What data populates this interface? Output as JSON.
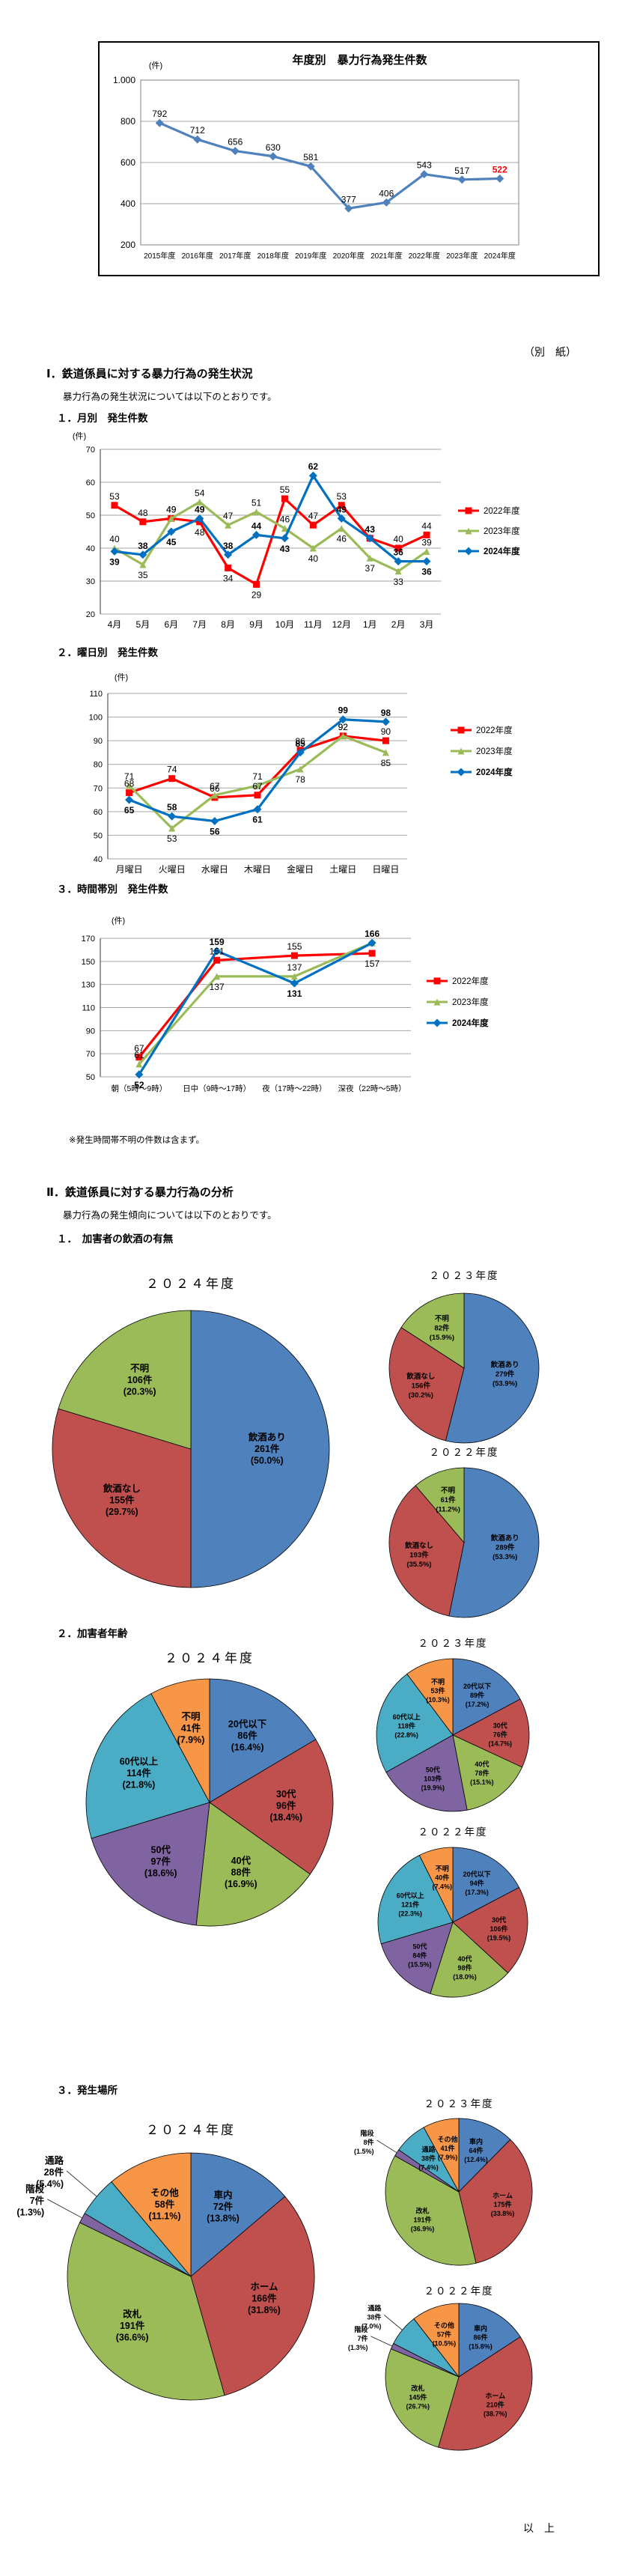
{
  "page": {
    "besshi": "（別　紙）",
    "section1_title": "Ⅰ．鉄道係員に対する暴力行為の発生状況",
    "section1_sub": "暴力行為の発生状況については以下のとおりです。",
    "monthly_title": "１．月別　発生件数",
    "weekday_title": "２．曜日別　発生件数",
    "time_title": "３．時間帯別　発生件数",
    "time_note": "※発生時間帯不明の件数は含まず。",
    "section2_title": "Ⅱ．鉄道係員に対する暴力行為の分析",
    "section2_sub": "暴力行為の発生傾向については以下のとおりです。",
    "analysis1_title": "１．　加害者の飲酒の有無",
    "analysis2_title": "２．加害者年齢",
    "analysis3_title": "３．発生場所",
    "closing": "以　上"
  },
  "colors": {
    "series_2022": "#FF0000",
    "series_2023": "#9BBB59",
    "series_2024": "#0070C0",
    "annual_line": "#4F81BD",
    "pie_blue": "#4F81BD",
    "pie_red": "#C0504D",
    "pie_green": "#9BBB59",
    "pie_purple": "#8064A2",
    "pie_teal": "#4BACC6",
    "pie_orange": "#F79646"
  },
  "chart_data": [
    {
      "id": "annual",
      "type": "line",
      "title": "年度別　暴力行為発生件数",
      "unit": "(件)",
      "categories": [
        "2015年度",
        "2016年度",
        "2017年度",
        "2018年度",
        "2019年度",
        "2020年度",
        "2021年度",
        "2022年度",
        "2023年度",
        "2024年度"
      ],
      "values": [
        792,
        712,
        656,
        630,
        581,
        377,
        406,
        543,
        517,
        522
      ],
      "ylim": [
        200,
        1000
      ],
      "yticks": [
        1000,
        800,
        600,
        400,
        200
      ],
      "ytick_labels": [
        "1.000",
        "800",
        "600",
        "400",
        "200"
      ],
      "line_color": "#4F81BD",
      "highlight_last": "#FF0000",
      "grid": true,
      "legend_position": "none"
    },
    {
      "id": "monthly",
      "type": "line",
      "unit": "(件)",
      "categories": [
        "4月",
        "5月",
        "6月",
        "7月",
        "8月",
        "9月",
        "10月",
        "11月",
        "12月",
        "1月",
        "2月",
        "3月"
      ],
      "ylim": [
        20,
        70
      ],
      "yticks": [
        70,
        60,
        50,
        40,
        30,
        20
      ],
      "series": [
        {
          "name": "2022年度",
          "color": "#FF0000",
          "marker": "square",
          "values": [
            53,
            48,
            49,
            48,
            34,
            29,
            55,
            47,
            53,
            43,
            40,
            44
          ]
        },
        {
          "name": "2023年度",
          "color": "#9BBB59",
          "marker": "triangle",
          "values": [
            40,
            35,
            49,
            54,
            47,
            51,
            46,
            40,
            46,
            37,
            33,
            39
          ]
        },
        {
          "name": "2024年度",
          "color": "#0070C0",
          "marker": "diamond",
          "bold": true,
          "values": [
            39,
            38,
            45,
            49,
            38,
            44,
            43,
            62,
            49,
            43,
            36,
            36
          ]
        }
      ],
      "grid": true,
      "legend_position": "right"
    },
    {
      "id": "weekday",
      "type": "line",
      "unit": "(件)",
      "categories": [
        "月曜日",
        "火曜日",
        "水曜日",
        "木曜日",
        "金曜日",
        "土曜日",
        "日曜日"
      ],
      "ylim": [
        40,
        110
      ],
      "yticks": [
        110,
        100,
        90,
        80,
        70,
        60,
        50,
        40
      ],
      "series": [
        {
          "name": "2022年度",
          "color": "#FF0000",
          "marker": "square",
          "values": [
            68,
            74,
            66,
            67,
            86,
            92,
            90
          ]
        },
        {
          "name": "2023年度",
          "color": "#9BBB59",
          "marker": "triangle",
          "values": [
            71,
            53,
            67,
            71,
            78,
            92,
            85
          ]
        },
        {
          "name": "2024年度",
          "color": "#0070C0",
          "marker": "diamond",
          "bold": true,
          "values": [
            65,
            58,
            56,
            61,
            85,
            99,
            98
          ]
        }
      ],
      "grid": true,
      "legend_position": "right"
    },
    {
      "id": "time",
      "type": "line",
      "unit": "(件)",
      "categories": [
        "朝（5時～9時）",
        "日中（9時～17時）",
        "夜（17時～22時）",
        "深夜（22時～5時）"
      ],
      "ylim": [
        50,
        170
      ],
      "yticks": [
        170,
        150,
        130,
        110,
        90,
        70,
        50
      ],
      "series": [
        {
          "name": "2022年度",
          "color": "#FF0000",
          "marker": "square",
          "values": [
            67,
            151,
            155,
            157
          ]
        },
        {
          "name": "2023年度",
          "color": "#9BBB59",
          "marker": "triangle",
          "values": [
            61,
            137,
            137,
            166
          ],
          "hide_labels": [
            3
          ]
        },
        {
          "name": "2024年度",
          "color": "#0070C0",
          "marker": "diamond",
          "bold": true,
          "values": [
            52,
            159,
            131,
            166
          ]
        }
      ],
      "grid": true,
      "legend_position": "right",
      "note": "※発生時間帯不明の件数は含まず。"
    },
    {
      "id": "drink2024",
      "type": "pie",
      "year_title": "２０２４年度",
      "items": [
        {
          "label": "飲酒あり",
          "count": 261,
          "pct": "50.0",
          "color": "#4F81BD"
        },
        {
          "label": "飲酒なし",
          "count": 155,
          "pct": "29.7",
          "color": "#C0504D"
        },
        {
          "label": "不明",
          "count": 106,
          "pct": "20.3",
          "color": "#9BBB59"
        }
      ]
    },
    {
      "id": "drink2023",
      "type": "pie",
      "year_title": "２０２３年度",
      "items": [
        {
          "label": "飲酒あり",
          "count": 279,
          "pct": "53.9",
          "color": "#4F81BD"
        },
        {
          "label": "飲酒なし",
          "count": 156,
          "pct": "30.2",
          "color": "#C0504D"
        },
        {
          "label": "不明",
          "count": 82,
          "pct": "15.9",
          "color": "#9BBB59"
        }
      ]
    },
    {
      "id": "drink2022",
      "type": "pie",
      "year_title": "２０２２年度",
      "items": [
        {
          "label": "飲酒あり",
          "count": 289,
          "pct": "53.3",
          "color": "#4F81BD"
        },
        {
          "label": "飲酒なし",
          "count": 193,
          "pct": "35.5",
          "color": "#C0504D"
        },
        {
          "label": "不明",
          "count": 61,
          "pct": "11.2",
          "color": "#9BBB59"
        }
      ]
    },
    {
      "id": "age2024",
      "type": "pie",
      "year_title": "２０２４年度",
      "items": [
        {
          "label": "20代以下",
          "count": 86,
          "pct": "16.4",
          "color": "#4F81BD"
        },
        {
          "label": "30代",
          "count": 96,
          "pct": "18.4",
          "color": "#C0504D"
        },
        {
          "label": "40代",
          "count": 88,
          "pct": "16.9",
          "color": "#9BBB59"
        },
        {
          "label": "50代",
          "count": 97,
          "pct": "18.6",
          "color": "#8064A2"
        },
        {
          "label": "60代以上",
          "count": 114,
          "pct": "21.8",
          "color": "#4BACC6"
        },
        {
          "label": "不明",
          "count": 41,
          "pct": "7.9",
          "color": "#F79646"
        }
      ]
    },
    {
      "id": "age2023",
      "type": "pie",
      "year_title": "２０２３年度",
      "items": [
        {
          "label": "20代以下",
          "count": 89,
          "pct": "17.2",
          "color": "#4F81BD"
        },
        {
          "label": "30代",
          "count": 76,
          "pct": "14.7",
          "color": "#C0504D"
        },
        {
          "label": "40代",
          "count": 78,
          "pct": "15.1",
          "color": "#9BBB59"
        },
        {
          "label": "50代",
          "count": 103,
          "pct": "19.9",
          "color": "#8064A2"
        },
        {
          "label": "60代以上",
          "count": 118,
          "pct": "22.8",
          "color": "#4BACC6"
        },
        {
          "label": "不明",
          "count": 53,
          "pct": "10.3",
          "color": "#F79646"
        }
      ]
    },
    {
      "id": "age2022",
      "type": "pie",
      "year_title": "２０２２年度",
      "items": [
        {
          "label": "20代以下",
          "count": 94,
          "pct": "17.3",
          "color": "#4F81BD"
        },
        {
          "label": "30代",
          "count": 106,
          "pct": "19.5",
          "color": "#C0504D"
        },
        {
          "label": "40代",
          "count": 98,
          "pct": "18.0",
          "color": "#9BBB59"
        },
        {
          "label": "50代",
          "count": 84,
          "pct": "15.5",
          "color": "#8064A2"
        },
        {
          "label": "60代以上",
          "count": 121,
          "pct": "22.3",
          "color": "#4BACC6"
        },
        {
          "label": "不明",
          "count": 40,
          "pct": "7.4",
          "color": "#F79646"
        }
      ]
    },
    {
      "id": "loc2024",
      "type": "pie",
      "year_title": "２０２４年度",
      "items": [
        {
          "label": "車内",
          "count": 72,
          "pct": "13.8",
          "color": "#4F81BD"
        },
        {
          "label": "ホーム",
          "count": 166,
          "pct": "31.8",
          "color": "#C0504D"
        },
        {
          "label": "改札",
          "count": 191,
          "pct": "36.6",
          "color": "#9BBB59"
        },
        {
          "label": "階段",
          "count": 7,
          "pct": "1.3",
          "color": "#8064A2"
        },
        {
          "label": "通路",
          "count": 28,
          "pct": "5.4",
          "color": "#4BACC6"
        },
        {
          "label": "その他",
          "count": 58,
          "pct": "11.1",
          "color": "#F79646"
        }
      ]
    },
    {
      "id": "loc2023",
      "type": "pie",
      "year_title": "２０２３年度",
      "items": [
        {
          "label": "車内",
          "count": 64,
          "pct": "12.4",
          "color": "#4F81BD"
        },
        {
          "label": "ホーム",
          "count": 175,
          "pct": "33.8",
          "color": "#C0504D"
        },
        {
          "label": "改札",
          "count": 191,
          "pct": "36.9",
          "color": "#9BBB59"
        },
        {
          "label": "階段",
          "count": 8,
          "pct": "1.5",
          "color": "#8064A2"
        },
        {
          "label": "通路",
          "count": 38,
          "pct": "7.4",
          "color": "#4BACC6"
        },
        {
          "label": "その他",
          "count": 41,
          "pct": "7.9",
          "color": "#F79646"
        }
      ]
    },
    {
      "id": "loc2022",
      "type": "pie",
      "year_title": "２０２２年度",
      "items": [
        {
          "label": "車内",
          "count": 86,
          "pct": "15.8",
          "color": "#4F81BD"
        },
        {
          "label": "ホーム",
          "count": 210,
          "pct": "38.7",
          "color": "#C0504D"
        },
        {
          "label": "改札",
          "count": 145,
          "pct": "26.7",
          "color": "#9BBB59"
        },
        {
          "label": "階段",
          "count": 7,
          "pct": "1.3",
          "color": "#8064A2"
        },
        {
          "label": "通路",
          "count": 38,
          "pct": "7.0",
          "color": "#4BACC6"
        },
        {
          "label": "その他",
          "count": 57,
          "pct": "10.5",
          "color": "#F79646"
        }
      ]
    }
  ]
}
